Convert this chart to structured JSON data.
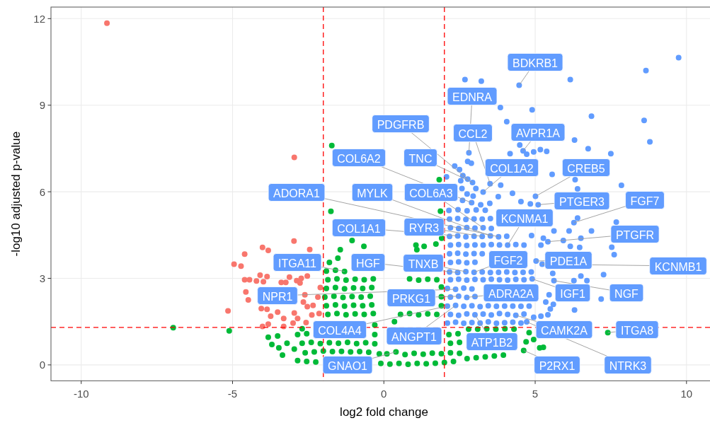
{
  "chart_data": {
    "type": "scatter",
    "xlabel": "log2 fold change",
    "ylabel": "-log10 adjusted p-value",
    "xlim": [
      -11,
      10.8
    ],
    "ylim": [
      -0.55,
      12.4
    ],
    "xticks": [
      -10,
      -5,
      0,
      5,
      10
    ],
    "yticks": [
      0,
      3,
      6,
      9,
      12
    ],
    "grid": true,
    "marker": "circle",
    "ref_lines": [
      {
        "axis": "x",
        "value": -2,
        "color": "#ff0000",
        "line_style": "dashed"
      },
      {
        "axis": "x",
        "value": 2,
        "color": "#ff0000",
        "line_style": "dashed"
      },
      {
        "axis": "y",
        "value": 1.3,
        "color": "#ff0000",
        "line_style": "dashed"
      }
    ],
    "series": [
      {
        "color": "#f8766d",
        "x": [
          -9.15,
          -2.96,
          -2.97,
          -4.01,
          -3.82,
          -4.6,
          -4.95,
          -4.72,
          -4.09,
          -3.86,
          -4.6,
          -4.44,
          -4.21,
          -3.98,
          -3.12,
          -3.39,
          -3.24,
          -2.88,
          -2.73,
          -2.53,
          -2.45,
          -2.77,
          -2.1,
          -4.56,
          -4.48,
          -5.15,
          -4.05,
          -3.86,
          -3.51,
          -3.74,
          -3.31,
          -2.96,
          -2.66,
          -2.53,
          -2.34,
          -2.18,
          -2.38,
          -2.14,
          -2.85,
          -3.82,
          -3.31,
          -3.0,
          -2.57,
          -4.01,
          -2.61
        ],
        "values": [
          11.84,
          7.19,
          4.29,
          4.07,
          3.97,
          3.84,
          3.49,
          3.42,
          3.11,
          3.06,
          2.95,
          2.95,
          2.91,
          2.88,
          3.04,
          2.86,
          2.86,
          2.92,
          3.0,
          3.08,
          4.0,
          2.84,
          2.68,
          2.53,
          2.25,
          1.87,
          1.95,
          1.93,
          1.83,
          1.69,
          1.61,
          1.8,
          2.18,
          2.02,
          2.06,
          2.35,
          1.73,
          1.78,
          1.61,
          1.41,
          1.33,
          1.45,
          1.47,
          1.33,
          2.43
        ]
      },
      {
        "color": "#619cff",
        "x": [
          2.1,
          2.37,
          2.64,
          2.91,
          3.18,
          3.45,
          3.72,
          3.99,
          4.26,
          4.53,
          2.2,
          2.47,
          2.74,
          3.01,
          3.28,
          3.55,
          3.82,
          4.09,
          4.36,
          4.63,
          2.1,
          2.37,
          2.64,
          2.91,
          3.18,
          3.45,
          3.72,
          3.99,
          4.26,
          4.53,
          4.8,
          2.2,
          2.47,
          2.74,
          3.01,
          2.1,
          2.37,
          2.64,
          2.91,
          2.2,
          2.47,
          2.74,
          3.01,
          3.28,
          3.55,
          3.82,
          4.09,
          4.36,
          4.63,
          4.9,
          2.17,
          2.44,
          2.71,
          2.98,
          3.25,
          3.52,
          3.79,
          4.06,
          4.33,
          4.6,
          4.87,
          2.2,
          2.47,
          2.74,
          3.01,
          2.17,
          2.44,
          2.71,
          2.98,
          3.25,
          2.2,
          2.47,
          2.74,
          3.01,
          3.28,
          3.55,
          3.82,
          4.09,
          4.36,
          4.63,
          2.17,
          2.44,
          2.71,
          2.98,
          3.25,
          3.52,
          3.79,
          4.06,
          2.2,
          2.47,
          2.74,
          3.01,
          3.28,
          3.55,
          2.17,
          2.44,
          2.71,
          2.98,
          3.25,
          3.52,
          2.15,
          2.45,
          2.75,
          3.05,
          3.35,
          2.6,
          2.9,
          3.2,
          3.5,
          2.75,
          2.95,
          2.81,
          2.77,
          2.89,
          2.34,
          2.07,
          2.5,
          2.61,
          2.77,
          2.93,
          3.04,
          3.28,
          3.51,
          3.86,
          2.54,
          2.58,
          4.25,
          4.53,
          4.84,
          3.78,
          4.17,
          4.49,
          4.6,
          4.72,
          4.95,
          5.17,
          5.38,
          5.01,
          5.56,
          6.4,
          6.32,
          6.75,
          6.3,
          7.5,
          7.85,
          9.74,
          8.66,
          6.16,
          4.47,
          2.68,
          3.22,
          3.85,
          4.9,
          4.06,
          6.86,
          8.6,
          8.79,
          6.4,
          6.28,
          6.12,
          6.86,
          5.62,
          5.93,
          6.51,
          6.16,
          6.47,
          7.53,
          7.61,
          7.68,
          7.26,
          6.51,
          6.71,
          6.28,
          7.18,
          6.3,
          5.58,
          5.6,
          5.5,
          5.42,
          5.19,
          4.95,
          4.72,
          5.19,
          4.88,
          5.27,
          5.23,
          5.62,
          5.46,
          5.35,
          5.42,
          5.1,
          5.03
        ],
        "values": [
          1.45,
          1.48,
          1.44,
          1.47,
          1.45,
          1.49,
          1.44,
          1.46,
          1.48,
          1.45,
          1.75,
          1.72,
          1.77,
          1.74,
          1.76,
          1.73,
          1.78,
          1.75,
          1.72,
          1.76,
          2.04,
          2.06,
          2.03,
          2.05,
          2.02,
          2.05,
          2.03,
          2.04,
          2.04,
          2.03,
          2.04,
          2.35,
          2.38,
          2.34,
          2.37,
          2.65,
          2.62,
          2.66,
          2.63,
          2.95,
          2.97,
          2.94,
          2.96,
          2.95,
          2.97,
          2.95,
          2.94,
          2.96,
          2.95,
          2.98,
          3.22,
          3.2,
          3.23,
          3.21,
          3.22,
          3.2,
          3.21,
          3.22,
          3.2,
          3.21,
          3.22,
          3.55,
          3.57,
          3.54,
          3.56,
          3.85,
          3.87,
          3.84,
          3.86,
          3.85,
          4.15,
          4.17,
          4.14,
          4.16,
          4.15,
          4.17,
          4.16,
          4.15,
          4.17,
          4.15,
          4.45,
          4.47,
          4.44,
          4.46,
          4.45,
          4.47,
          4.44,
          4.46,
          4.75,
          4.73,
          4.76,
          4.74,
          4.75,
          4.73,
          5.05,
          5.07,
          5.04,
          5.06,
          5.05,
          5.07,
          5.35,
          5.38,
          5.34,
          5.37,
          5.36,
          5.7,
          5.62,
          5.55,
          5.6,
          5.92,
          5.85,
          7.35,
          7.05,
          6.99,
          6.89,
          6.52,
          6.77,
          6.56,
          6.44,
          6.32,
          6.11,
          5.99,
          6.28,
          6.23,
          6.38,
          6.11,
          5.95,
          5.66,
          5.58,
          5.83,
          7.32,
          7.62,
          7.42,
          7.3,
          7.38,
          7.46,
          7.4,
          5.84,
          6.6,
          6.1,
          6.42,
          7.49,
          7.79,
          7.32,
          6.22,
          10.65,
          10.2,
          9.89,
          9.69,
          9.89,
          9.83,
          8.92,
          8.84,
          8.43,
          8.62,
          8.47,
          7.73,
          5.09,
          4.93,
          4.64,
          4.64,
          4.64,
          4.31,
          4.39,
          4.11,
          4.07,
          4.08,
          3.82,
          4.95,
          3.13,
          3.08,
          2.92,
          2.92,
          2.28,
          1.9,
          3.17,
          2.1,
          1.94,
          1.74,
          1.69,
          1.65,
          1.49,
          4.15,
          4.48,
          4.39,
          3.49,
          2.92,
          2.43,
          2.18,
          4.27,
          5.55,
          3.6
        ]
      },
      {
        "color": "#00ba38",
        "x": [
          -6.96,
          -5.11,
          -3.82,
          -3.51,
          -3.7,
          -3.47,
          -3.2,
          -3.35,
          -2.96,
          -1.72,
          -1.75,
          1.83,
          1.87,
          -1.05,
          -0.66,
          -1.44,
          -1.52,
          1.06,
          1.33,
          1.72,
          1.91,
          1.09,
          -2.85,
          -2.55,
          -2.25,
          -0.1,
          0.2,
          0.5,
          0.8,
          1.1,
          1.4,
          1.7,
          2.0,
          2.3,
          -2.6,
          -2.3,
          -2.0,
          -1.7,
          -1.4,
          -1.1,
          -0.8,
          -0.5,
          -0.15,
          0.1,
          0.4,
          0.7,
          1.0,
          1.3,
          1.6,
          1.9,
          2.2,
          2.5,
          2.75,
          3.05,
          3.35,
          3.65,
          3.95,
          4.62,
          -2.7,
          -2.4,
          -2.1,
          -1.8,
          -1.5,
          -1.2,
          -0.9,
          -0.6,
          -0.3,
          2.2,
          2.5,
          4.7,
          5.15,
          5.27,
          -2.85,
          -2.55,
          -0.3,
          2.15,
          2.45,
          4.8,
          4.95,
          2.8,
          3.1,
          3.4,
          3.7,
          4.0,
          4.3,
          -2.7,
          -0.3,
          -1.85,
          -1.55,
          -1.25,
          -0.95,
          -0.65,
          -0.35,
          0.55,
          0.85,
          1.15,
          1.45,
          1.75,
          0.35,
          -1.9,
          -1.6,
          -1.3,
          -1.0,
          -0.7,
          -0.4,
          1.9,
          -1.95,
          -1.65,
          -1.35,
          -1.05,
          -0.75,
          -0.45,
          1.9,
          -1.9,
          -1.6,
          -1.3,
          -1.0,
          -0.7,
          -0.4,
          1.9,
          -1.85,
          -1.55,
          -1.25,
          -0.95,
          -0.65,
          -0.35,
          0.85,
          1.15,
          1.45,
          1.75,
          -1.9,
          -1.6,
          -1.3,
          -1.8,
          7.4
        ],
        "values": [
          1.29,
          1.18,
          0.96,
          1.0,
          0.71,
          0.59,
          0.75,
          0.34,
          0.55,
          7.6,
          5.32,
          6.42,
          5.33,
          4.31,
          4.11,
          3.99,
          3.7,
          4.15,
          4.11,
          4.19,
          4.39,
          3.99,
          0.15,
          0.12,
          0.1,
          0.05,
          0.03,
          0.05,
          0.02,
          0.05,
          0.04,
          0.06,
          0.08,
          0.12,
          0.42,
          0.45,
          0.48,
          0.46,
          0.47,
          0.45,
          0.46,
          0.44,
          0.38,
          0.38,
          0.45,
          0.36,
          0.4,
          0.37,
          0.41,
          0.39,
          0.42,
          0.4,
          0.22,
          0.25,
          0.28,
          0.31,
          0.34,
          0.5,
          0.75,
          0.78,
          0.74,
          0.77,
          0.75,
          0.78,
          0.74,
          0.77,
          0.73,
          0.75,
          0.78,
          0.8,
          0.59,
          0.61,
          1.05,
          1.08,
          1.05,
          1.05,
          1.08,
          1.12,
          0.88,
          1.24,
          1.24,
          1.25,
          1.24,
          1.25,
          1.24,
          1.25,
          1.38,
          1.75,
          1.78,
          1.74,
          1.77,
          1.75,
          1.78,
          1.75,
          1.78,
          1.74,
          1.77,
          1.75,
          1.5,
          2.05,
          2.08,
          2.04,
          2.07,
          2.05,
          2.08,
          2.05,
          2.35,
          2.38,
          2.34,
          2.37,
          2.35,
          2.38,
          2.36,
          2.65,
          2.68,
          2.64,
          2.67,
          2.65,
          2.68,
          2.7,
          2.95,
          2.98,
          2.94,
          2.97,
          2.95,
          2.98,
          2.98,
          2.94,
          2.97,
          2.95,
          3.25,
          3.28,
          3.24,
          3.55,
          1.12
        ]
      }
    ],
    "annotations": [
      {
        "text": "BDKRB1",
        "x": 4.47,
        "y": 9.69
      },
      {
        "text": "EDNRA",
        "x": 2.81,
        "y": 7.35
      },
      {
        "text": "PDGFRB",
        "x": 2.77,
        "y": 6.44
      },
      {
        "text": "CCL2",
        "x": 3.51,
        "y": 6.28
      },
      {
        "text": "AVPR1A",
        "x": 4.6,
        "y": 7.42
      },
      {
        "text": "COL6A2",
        "x": 2.9,
        "y": 5.62
      },
      {
        "text": "TNC",
        "x": 2.93,
        "y": 6.32
      },
      {
        "text": "COL1A2",
        "x": 3.28,
        "y": 5.99
      },
      {
        "text": "CREB5",
        "x": 5.01,
        "y": 5.84
      },
      {
        "text": "ADORA1",
        "x": 3.79,
        "y": 4.44
      },
      {
        "text": "MYLK",
        "x": 3.52,
        "y": 4.47
      },
      {
        "text": "COL6A3",
        "x": 3.28,
        "y": 4.75
      },
      {
        "text": "PTGER3",
        "x": 5.1,
        "y": 5.55
      },
      {
        "text": "FGF7",
        "x": 6.28,
        "y": 4.93
      },
      {
        "text": "COL1A1",
        "x": 2.44,
        "y": 4.47
      },
      {
        "text": "RYR3",
        "x": 3.25,
        "y": 4.45
      },
      {
        "text": "KCNMA1",
        "x": 4.09,
        "y": 4.15
      },
      {
        "text": "PTGFR",
        "x": 5.42,
        "y": 4.27
      },
      {
        "text": "ITGA11",
        "x": -1.3,
        "y": 3.24
      },
      {
        "text": "HGF",
        "x": 2.44,
        "y": 3.2
      },
      {
        "text": "TNXB",
        "x": 2.71,
        "y": 3.23
      },
      {
        "text": "FGF2",
        "x": 2.98,
        "y": 3.21
      },
      {
        "text": "PDE1A",
        "x": 5.03,
        "y": 3.6
      },
      {
        "text": "KCNMB1",
        "x": 5.23,
        "y": 3.49
      },
      {
        "text": "NPR1",
        "x": 2.37,
        "y": 2.62
      },
      {
        "text": "PRKG1",
        "x": 2.47,
        "y": 2.38
      },
      {
        "text": "ADRA2A",
        "x": 2.74,
        "y": 2.34
      },
      {
        "text": "IGF1",
        "x": 4.9,
        "y": 2.98
      },
      {
        "text": "NGF",
        "x": 5.62,
        "y": 2.92
      },
      {
        "text": "COL4A4",
        "x": 2.1,
        "y": 2.04
      },
      {
        "text": "ANGPT1",
        "x": 2.37,
        "y": 2.06
      },
      {
        "text": "CAMK2A",
        "x": 4.36,
        "y": 1.72
      },
      {
        "text": "ITGA8",
        "x": 7.4,
        "y": 1.12
      },
      {
        "text": "ATP1B2",
        "x": 3.01,
        "y": 1.74
      },
      {
        "text": "GNAO1",
        "x": 0.4,
        "y": 0.45
      },
      {
        "text": "P2RX1",
        "x": 4.62,
        "y": 0.5
      },
      {
        "text": "NTRK3",
        "x": 4.72,
        "y": 1.49
      }
    ]
  }
}
